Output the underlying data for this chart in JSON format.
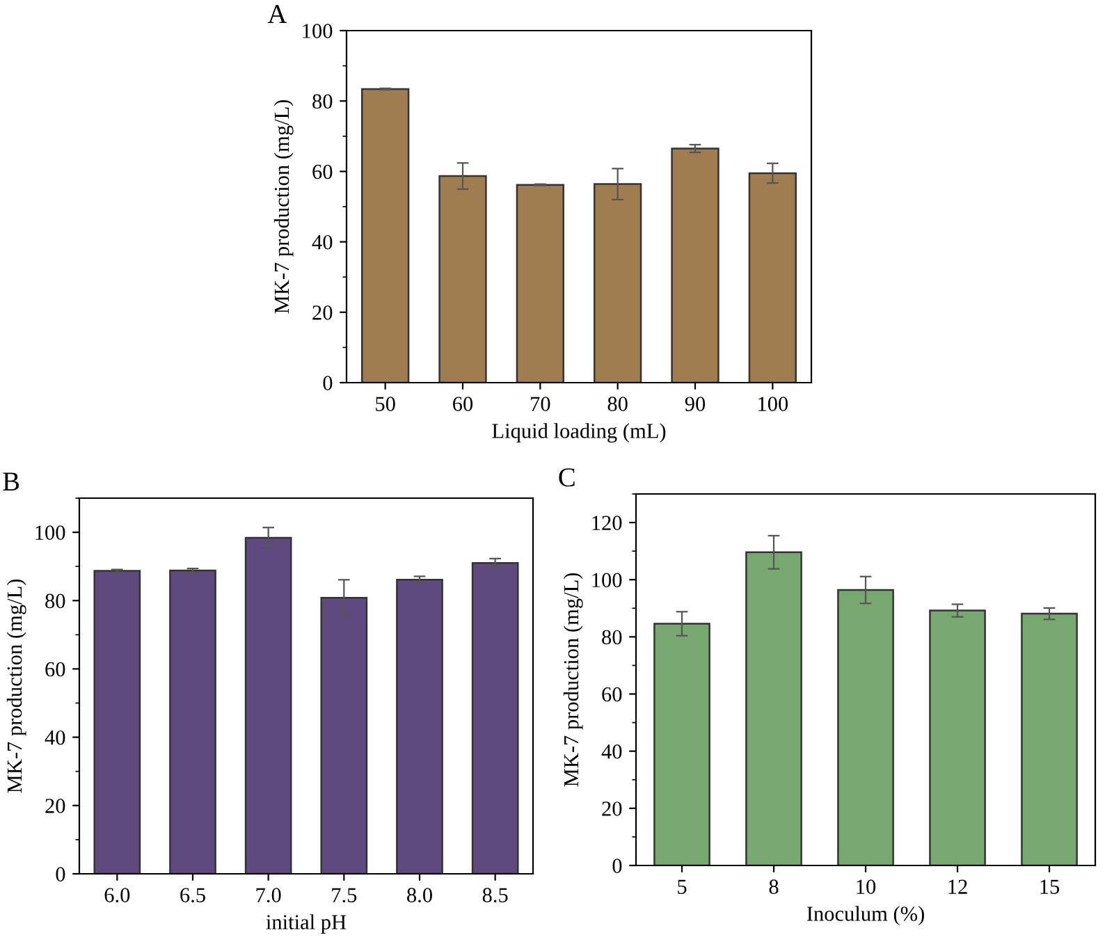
{
  "chart_data": [
    {
      "type": "bar",
      "title": "A",
      "xlabel": "Liquid loading (mL)",
      "ylabel": "MK-7 production (mg/L)",
      "categories": [
        "50",
        "60",
        "70",
        "80",
        "90",
        "100"
      ],
      "series": [
        {
          "color": "#a07d50",
          "values": [
            83.4,
            58.7,
            56.2,
            56.4,
            66.5,
            59.5
          ],
          "errors": [
            0.2,
            3.7,
            0.2,
            4.4,
            1.1,
            2.8
          ]
        }
      ],
      "ylim": [
        0,
        100
      ],
      "yticks": [
        0,
        20,
        40,
        60,
        80,
        100
      ],
      "grid": false,
      "legend": false
    },
    {
      "type": "bar",
      "title": "B",
      "xlabel": "initial pH",
      "ylabel": "MK-7 production (mg/L)",
      "categories": [
        "6.0",
        "6.5",
        "7.0",
        "7.5",
        "8.0",
        "8.5"
      ],
      "series": [
        {
          "color": "#5e4a7e",
          "values": [
            88.7,
            88.8,
            98.4,
            80.8,
            86.1,
            91.0
          ],
          "errors": [
            0.4,
            0.6,
            3.0,
            5.3,
            1.0,
            1.3
          ]
        }
      ],
      "ylim": [
        0,
        110
      ],
      "yticks": [
        0,
        20,
        40,
        60,
        80,
        100
      ],
      "grid": false,
      "legend": false
    },
    {
      "type": "bar",
      "title": "C",
      "xlabel": "Inoculum (%)",
      "ylabel": "MK-7 production (mg/L)",
      "categories": [
        "5",
        "8",
        "10",
        "12",
        "15"
      ],
      "series": [
        {
          "color": "#77a86f",
          "values": [
            84.6,
            109.6,
            96.4,
            89.2,
            88.1
          ],
          "errors": [
            4.2,
            5.8,
            4.7,
            2.2,
            2.0
          ]
        }
      ],
      "ylim": [
        0,
        130
      ],
      "yticks": [
        0,
        20,
        40,
        60,
        80,
        100,
        120
      ],
      "grid": false,
      "legend": false
    }
  ]
}
